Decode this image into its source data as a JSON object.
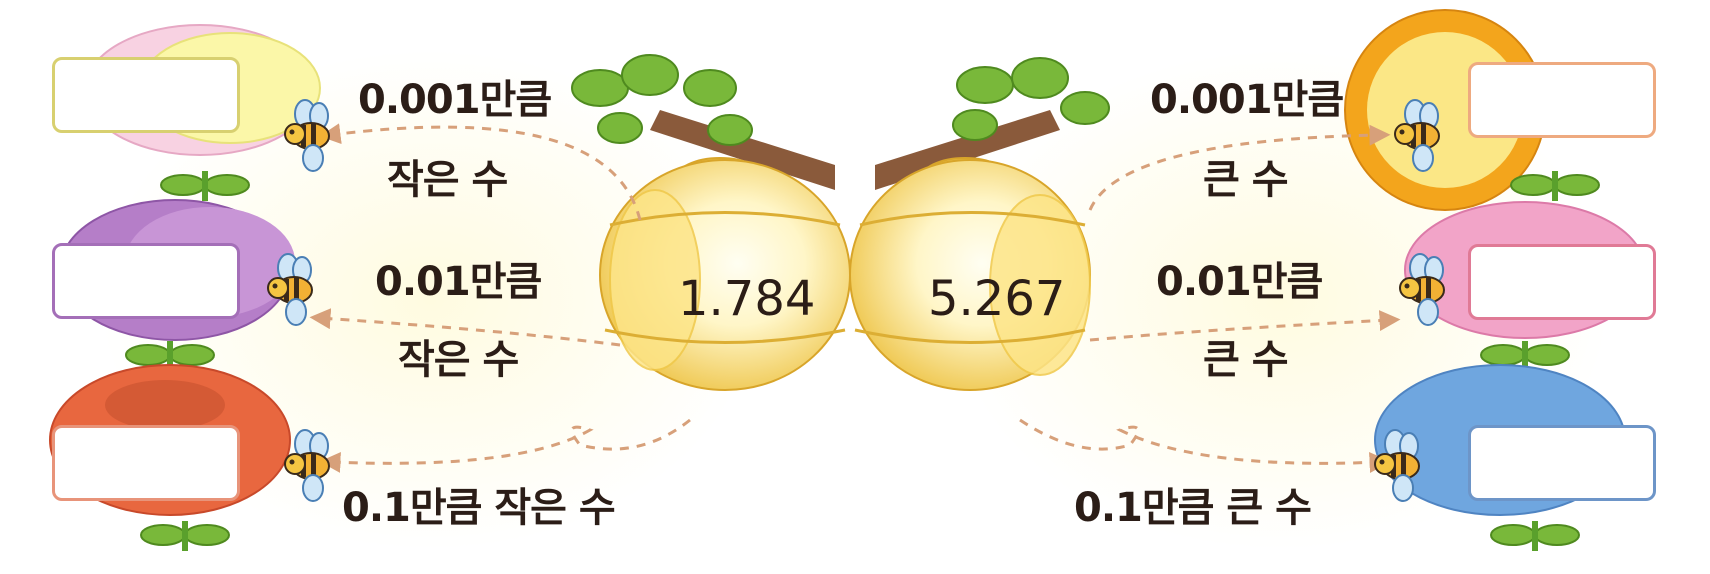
{
  "left_hive": {
    "number": "1.784",
    "labels": [
      {
        "amount": "0.001만큼",
        "text": "작은 수"
      },
      {
        "amount": "0.01만큼",
        "text": "작은 수"
      },
      {
        "full": "0.1만큼 작은 수"
      }
    ]
  },
  "right_hive": {
    "number": "5.267",
    "labels": [
      {
        "amount": "0.001만큼",
        "text": "큰 수"
      },
      {
        "amount": "0.01만큼",
        "text": "큰 수"
      },
      {
        "full": "0.1만큼 큰 수"
      }
    ]
  },
  "colors": {
    "arrow": "#d7a07a",
    "hive": "#f0c94b",
    "box_yellow": "#d8d070",
    "box_purple": "#a46fb8",
    "box_orange": "#e8947a",
    "box_peach": "#eeaa80",
    "box_pink": "#e07a96",
    "box_blue": "#6d95c8"
  },
  "icons": [
    "flower-icon",
    "bee-icon",
    "beehive-icon",
    "branch-icon",
    "leaf-icon"
  ]
}
